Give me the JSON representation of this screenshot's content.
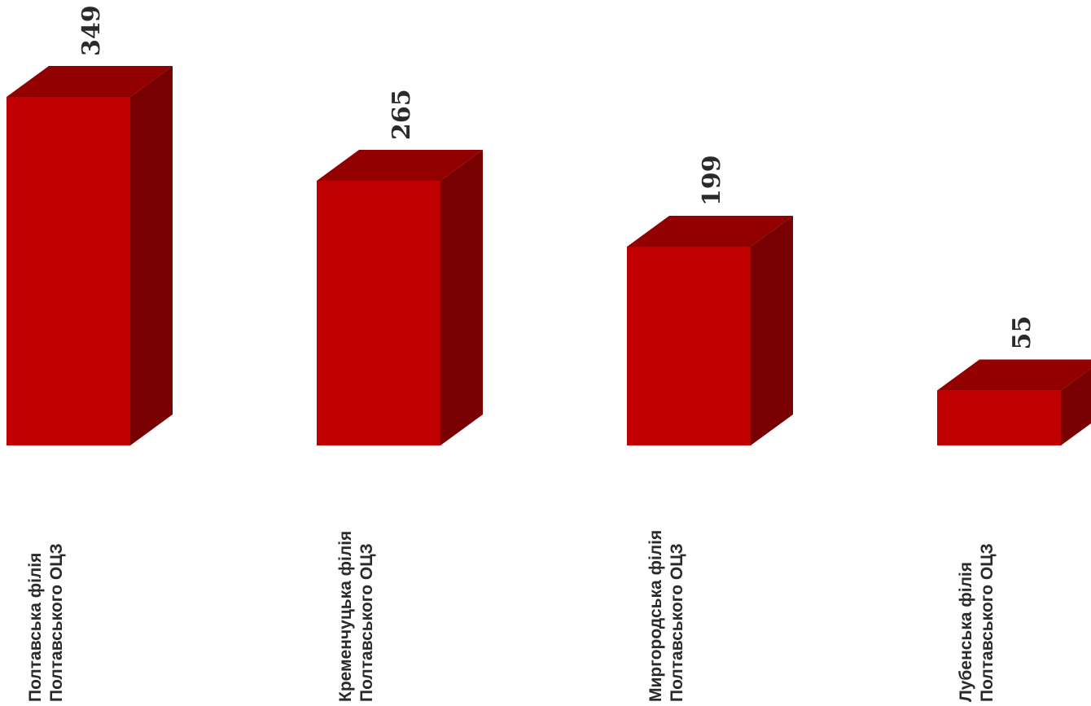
{
  "chart_data": {
    "type": "bar",
    "title": "",
    "xlabel": "",
    "ylabel": "",
    "categories": [
      [
        "Полтавська  філія",
        "Полтавського ОЦЗ"
      ],
      [
        "Кременчуцька філія",
        "Полтавського ОЦЗ"
      ],
      [
        "Миргородська філія",
        "Полтавського ОЦЗ"
      ],
      [
        "Лубенська філія",
        "Полтавського ОЦЗ"
      ]
    ],
    "values": [
      349,
      265,
      199,
      55
    ],
    "value_labels": [
      "349",
      "265",
      "199",
      "55"
    ],
    "ylim": [
      0,
      349
    ],
    "grid": false,
    "style": "3d-column",
    "colors": {
      "front": "#c00000",
      "top": "#930000",
      "side": "#780000"
    }
  }
}
